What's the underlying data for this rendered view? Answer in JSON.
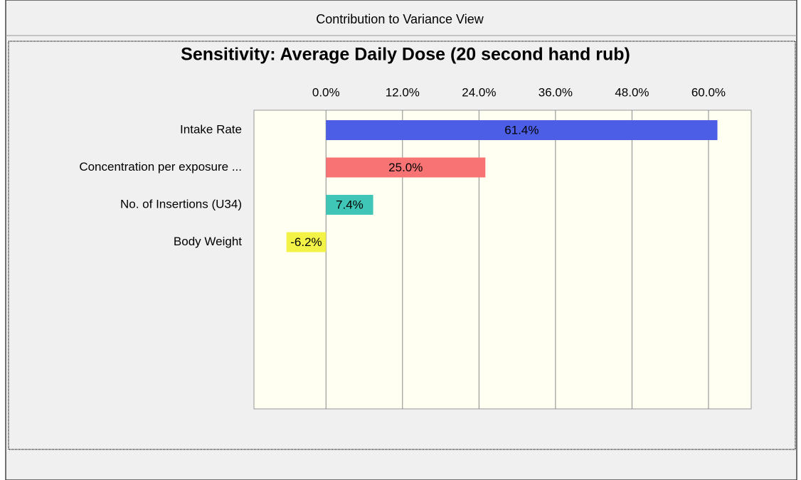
{
  "window_title": "Contribution to Variance View",
  "chart_data": {
    "type": "bar",
    "orientation": "horizontal",
    "title": "Sensitivity: Average Daily Dose (20 second hand rub)",
    "categories": [
      "Intake Rate",
      "Concentration per exposure ...",
      "No. of Insertions (U34)",
      "Body Weight"
    ],
    "values": [
      61.4,
      25.0,
      7.4,
      -6.2
    ],
    "value_labels": [
      "61.4%",
      "25.0%",
      "7.4%",
      "-6.2%"
    ],
    "colors": [
      "#4c5ee6",
      "#f87474",
      "#3fc6b6",
      "#f2f247"
    ],
    "xlim": [
      -11.3,
      66.7
    ],
    "xticks": [
      {
        "value": 0,
        "label": "0.0%"
      },
      {
        "value": 12,
        "label": "12.0%"
      },
      {
        "value": 24,
        "label": "24.0%"
      },
      {
        "value": 36,
        "label": "36.0%"
      },
      {
        "value": 48,
        "label": "48.0%"
      },
      {
        "value": 60,
        "label": "60.0%"
      }
    ],
    "grid": true
  }
}
